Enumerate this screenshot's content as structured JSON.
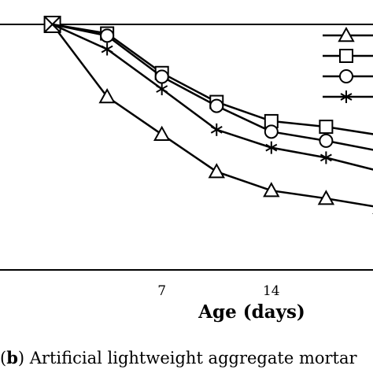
{
  "chart_data": {
    "type": "line",
    "title": "",
    "xlabel": "Age (days)",
    "ylabel": "",
    "xlim": [
      -3.35,
      20.5
    ],
    "ylim": [
      0,
      1
    ],
    "grid": false,
    "x_ticks": [
      7,
      14
    ],
    "x_tick_labels": [
      "7",
      "14"
    ],
    "legend_position": "top-right",
    "series": [
      {
        "marker": "triangle",
        "x": [
          0,
          3.5,
          7,
          10.5,
          14,
          17.5,
          21
        ],
        "y": [
          1,
          0.705,
          0.552,
          0.4,
          0.323,
          0.291,
          0.254
        ]
      },
      {
        "marker": "square",
        "x": [
          0,
          3.5,
          7,
          10.5,
          14,
          17.5,
          21
        ],
        "y": [
          1,
          0.963,
          0.802,
          0.684,
          0.606,
          0.583,
          0.548
        ]
      },
      {
        "marker": "circle",
        "x": [
          0,
          3.5,
          7,
          10.5,
          14,
          17.5,
          21
        ],
        "y": [
          1,
          0.954,
          0.787,
          0.668,
          0.563,
          0.526,
          0.483
        ]
      },
      {
        "marker": "asterisk",
        "x": [
          0,
          3.5,
          7,
          10.5,
          14,
          17.5,
          21
        ],
        "y": [
          1,
          0.899,
          0.737,
          0.571,
          0.498,
          0.457,
          0.401
        ]
      }
    ]
  },
  "caption": {
    "label": "b",
    "text": "Artificial lightweight aggregate mortar"
  }
}
